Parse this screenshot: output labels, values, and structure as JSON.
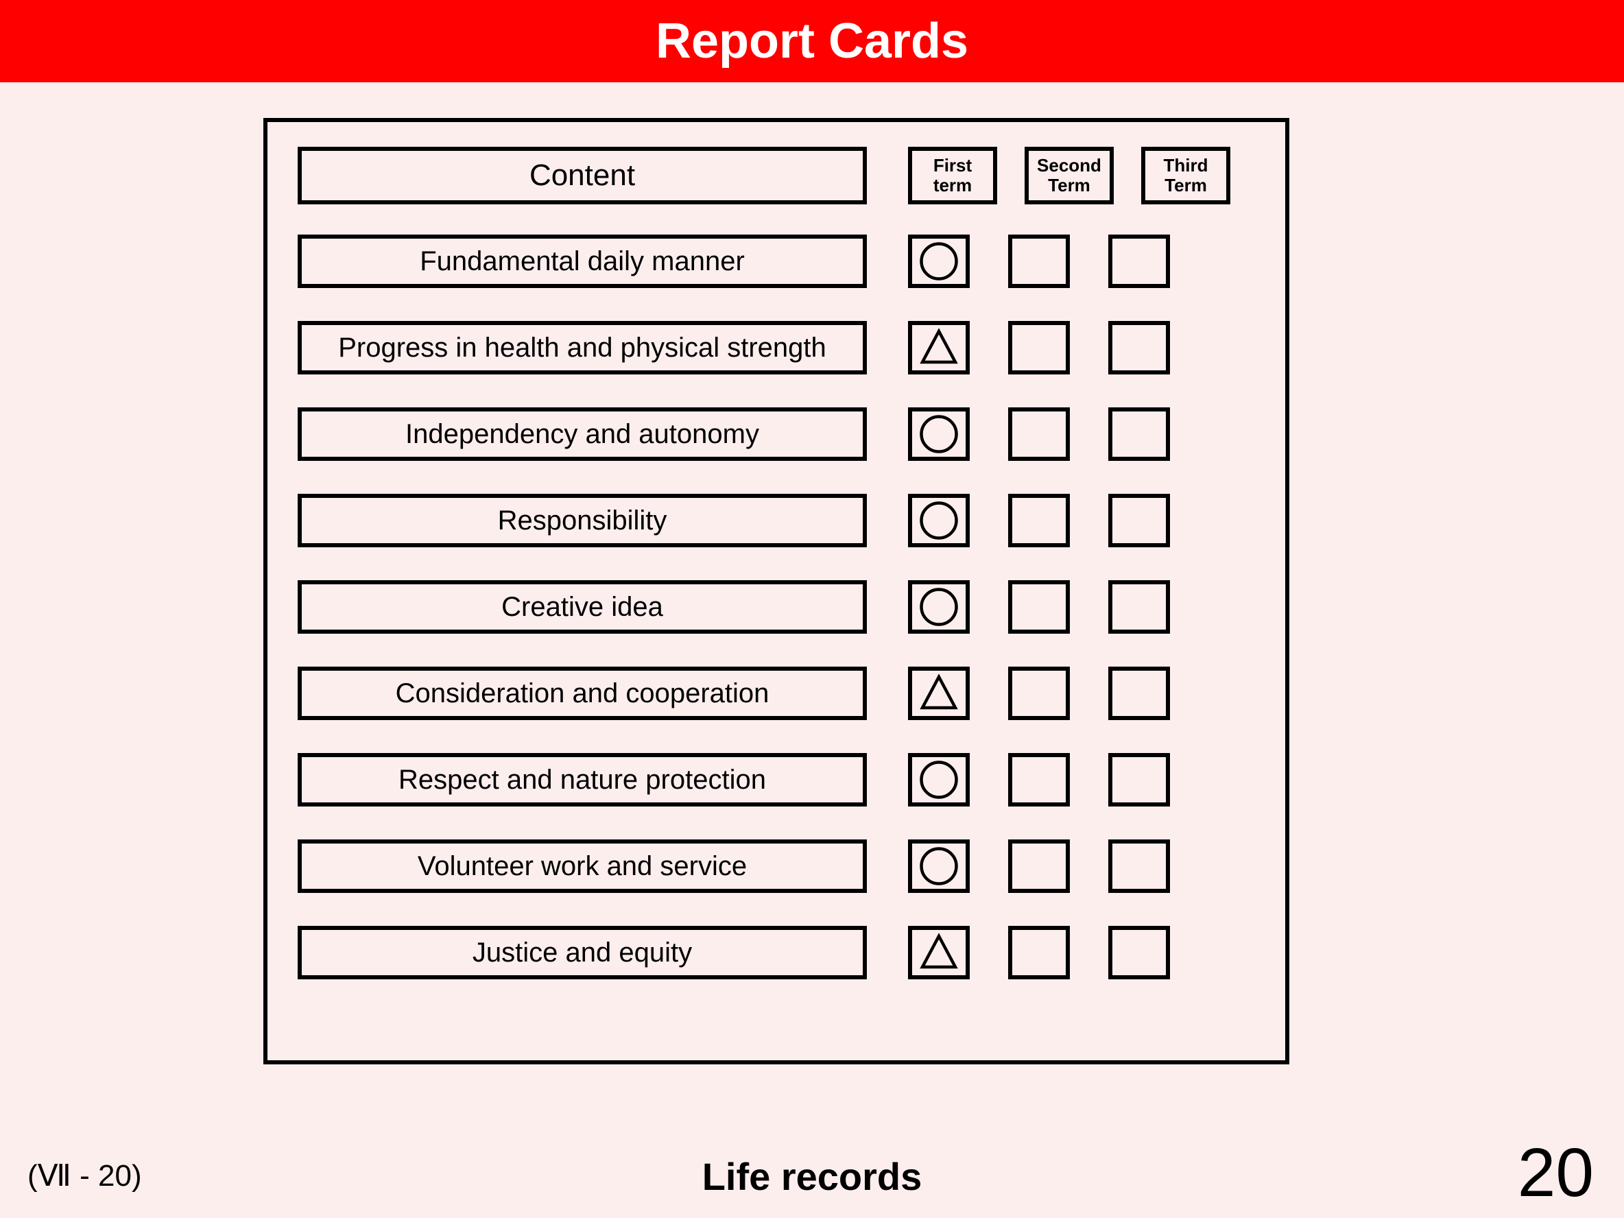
{
  "banner": {
    "title": "Report Cards"
  },
  "table": {
    "header": {
      "content": "Content",
      "terms": [
        "First\nterm",
        "Second\nTerm",
        "Third\nTerm"
      ]
    },
    "rows": [
      {
        "label": "Fundamental daily manner",
        "marks": [
          "circle",
          "",
          ""
        ]
      },
      {
        "label": "Progress in health and physical strength",
        "marks": [
          "triangle",
          "",
          ""
        ]
      },
      {
        "label": "Independency and autonomy",
        "marks": [
          "circle",
          "",
          ""
        ]
      },
      {
        "label": "Responsibility",
        "marks": [
          "circle",
          "",
          ""
        ]
      },
      {
        "label": "Creative idea",
        "marks": [
          "circle",
          "",
          ""
        ]
      },
      {
        "label": "Consideration and cooperation",
        "marks": [
          "triangle",
          "",
          ""
        ]
      },
      {
        "label": "Respect and nature protection",
        "marks": [
          "circle",
          "",
          ""
        ]
      },
      {
        "label": "Volunteer work and service",
        "marks": [
          "circle",
          "",
          ""
        ]
      },
      {
        "label": "Justice and equity",
        "marks": [
          "triangle",
          "",
          ""
        ]
      }
    ]
  },
  "footer": {
    "left": "(Ⅶ - 20)",
    "center": "Life records",
    "page": "20"
  },
  "style": {
    "banner_bg": "#ff0000",
    "banner_fg": "#ffffff",
    "page_bg": "#fdeeee",
    "border_color": "#000000",
    "mark_stroke": "#000000",
    "mark_stroke_width": 3
  }
}
